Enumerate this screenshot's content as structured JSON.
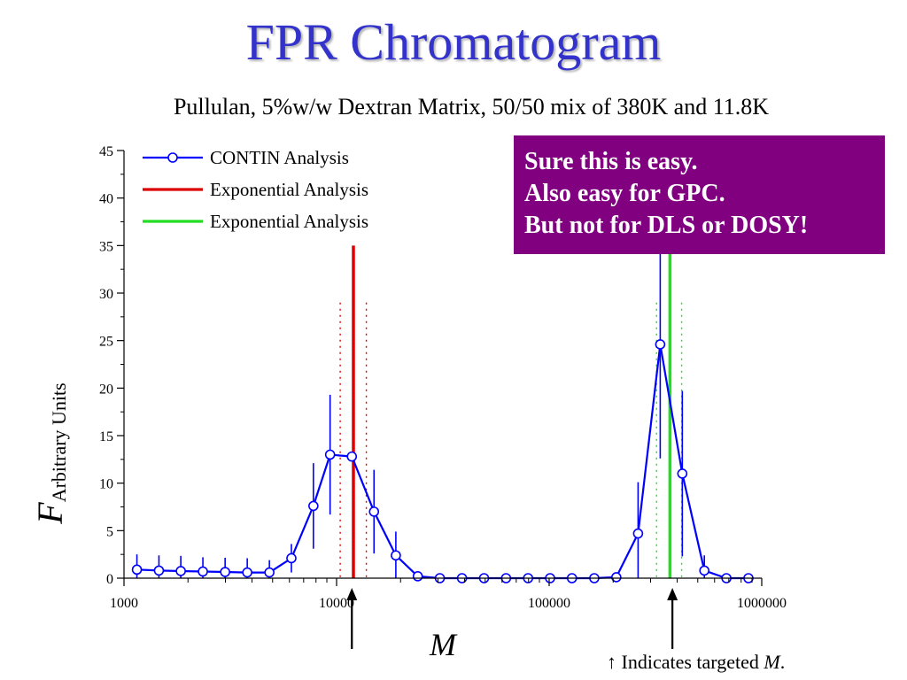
{
  "slide": {
    "title": "FPR Chromatogram",
    "subtitle": "Pullulan, 5%w/w Dextran Matrix, 50/50 mix of 380K and 11.8K"
  },
  "callout": {
    "lines": [
      "Sure this is easy.",
      "Also easy for GPC.",
      "But not for DLS or DOSY!"
    ],
    "background": "#800080"
  },
  "footnote": {
    "arrow": "↑",
    "text": " Indicates targeted ",
    "symbol": "M",
    "end": "."
  },
  "colors": {
    "title": "#3333cc",
    "contin": "#0000ff",
    "exp_red": "#dd0000",
    "exp_green": "#22dd22"
  },
  "chart_data": {
    "type": "line",
    "x_scale": "log",
    "xlim": [
      1000,
      1000000
    ],
    "ylim": [
      0,
      45
    ],
    "xticks": [
      1000,
      10000,
      100000,
      1000000
    ],
    "xtick_labels": [
      "1000",
      "10000",
      "100000",
      "1000000"
    ],
    "yticks": [
      0,
      5,
      10,
      15,
      20,
      25,
      30,
      35,
      40,
      45
    ],
    "ytick_labels": [
      "0",
      "5",
      "10",
      "15",
      "20",
      "25",
      "30",
      "35",
      "40",
      "45"
    ],
    "xlabel": "M",
    "ylabel": "F",
    "ylabel_subscript": "Arbitrary Units",
    "legend_position": "top-left",
    "series": [
      {
        "name": "CONTIN Analysis",
        "kind": "line-markers",
        "x": [
          1150,
          1460,
          1850,
          2350,
          2990,
          3800,
          4830,
          6130,
          7780,
          9320,
          11800,
          15000,
          19000,
          24100,
          30600,
          38900,
          49400,
          62700,
          79600,
          101000,
          128000,
          163000,
          207000,
          262000,
          333000,
          423000,
          537000,
          682000,
          866000
        ],
        "y": [
          0.9,
          0.8,
          0.75,
          0.7,
          0.65,
          0.6,
          0.6,
          2.1,
          7.6,
          13.0,
          12.8,
          7.0,
          2.4,
          0.2,
          0.0,
          0.0,
          0.0,
          0.0,
          0.0,
          0.0,
          0.0,
          0.0,
          0.1,
          4.7,
          24.6,
          11.0,
          0.8,
          0.0,
          0.0
        ],
        "err": [
          1.6,
          1.6,
          1.6,
          1.5,
          1.5,
          1.5,
          1.3,
          1.5,
          4.5,
          6.3,
          0.0,
          4.4,
          2.5,
          0.3,
          0.0,
          0.0,
          0.0,
          0.0,
          0.0,
          0.0,
          0.0,
          0.0,
          0.3,
          5.4,
          12.0,
          8.7,
          1.6,
          0.0,
          0.0
        ]
      },
      {
        "name": "Exponential Analysis",
        "kind": "vertical-line",
        "color": "#dd0000",
        "x": 12000,
        "y_top": 35,
        "bounds_x": [
          10400,
          13800
        ],
        "bounds_y_top": 29
      },
      {
        "name": "Exponential Analysis",
        "kind": "vertical-line",
        "color": "#22dd22",
        "x": 370000,
        "y_top": 35,
        "bounds_x": [
          320000,
          420000
        ],
        "bounds_y_top": 29
      }
    ],
    "target_arrows_x": [
      11800,
      380000
    ]
  }
}
